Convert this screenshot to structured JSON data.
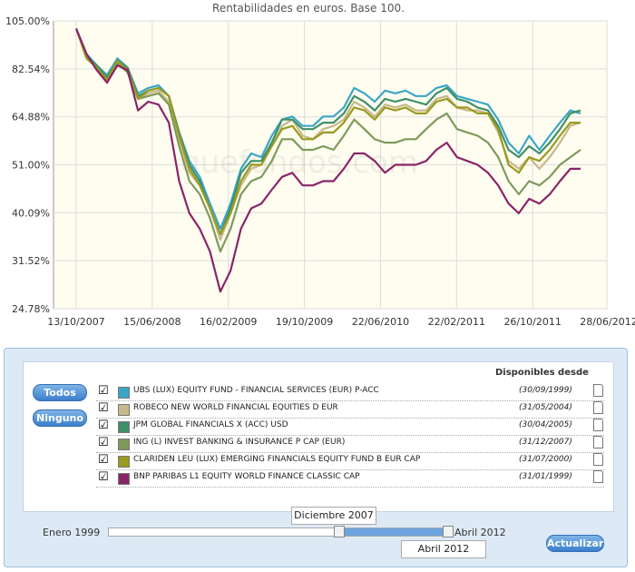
{
  "chart_data": {
    "type": "line",
    "title": "Rentabilidades en euros. Base 100.",
    "x_tick_labels": [
      "13/10/2007",
      "15/06/2008",
      "16/02/2009",
      "19/10/2009",
      "22/06/2010",
      "22/02/2011",
      "26/10/2011",
      "28/06/2012"
    ],
    "y_tick_labels": [
      "105.00%",
      "82.54%",
      "64.88%",
      "51.00%",
      "40.09%",
      "31.52%",
      "24.78%"
    ],
    "y_ticks": [
      105.0,
      82.54,
      64.88,
      51.0,
      40.09,
      31.52,
      24.78
    ],
    "ylim": [
      24.78,
      105.0
    ],
    "y_scale": "log",
    "grid": true,
    "series": [
      {
        "name": "UBS (LUX) EQUITY FUND - FINANCIAL SERVICES (EUR) P-ACC",
        "color": "#3aa6c6",
        "values": [
          101,
          89,
          84,
          80,
          87,
          83,
          73,
          75,
          76,
          72,
          60,
          52,
          48,
          42,
          37,
          42,
          50,
          54,
          53,
          59,
          64,
          65,
          62,
          62,
          65,
          65,
          68,
          75,
          73,
          70,
          74,
          73,
          74,
          72,
          72,
          75,
          76,
          72,
          71,
          70,
          69,
          64,
          57,
          54,
          59,
          55,
          59,
          63,
          67,
          66
        ]
      },
      {
        "name": "ROBECO NEW WORLD FINANCIAL EQUITIES D EUR",
        "color": "#c7b98a",
        "values": [
          101,
          88,
          83,
          78,
          86,
          82,
          71,
          73,
          74,
          70,
          58,
          49,
          46,
          41,
          35,
          40,
          46,
          50,
          51,
          56,
          62,
          64,
          59,
          58,
          61,
          62,
          64,
          70,
          68,
          65,
          69,
          68,
          69,
          67,
          67,
          71,
          72,
          68,
          67,
          67,
          66,
          60,
          52,
          50,
          53,
          50,
          53,
          57,
          62,
          63
        ]
      },
      {
        "name": "JPM GLOBAL FINANCIALS X (ACC) USD",
        "color": "#3f8f6a",
        "values": [
          101,
          88,
          84,
          79,
          86,
          83,
          72,
          74,
          75,
          72,
          60,
          51,
          47,
          41,
          36,
          41,
          49,
          52,
          52,
          57,
          64,
          64,
          61,
          61,
          63,
          63,
          66,
          72,
          70,
          67,
          71,
          70,
          71,
          70,
          69,
          73,
          75,
          71,
          70,
          68,
          67,
          62,
          55,
          53,
          56,
          54,
          57,
          61,
          66,
          67
        ]
      },
      {
        "name": "ING (L) INVEST BANKING & INSURANCE P CAP (EUR)",
        "color": "#7e9a5a",
        "values": [
          101,
          88,
          83,
          78,
          85,
          81,
          71,
          72,
          73,
          69,
          56,
          47,
          44,
          39,
          33,
          37,
          44,
          47,
          48,
          52,
          58,
          58,
          55,
          55,
          56,
          55,
          59,
          64,
          61,
          58,
          57,
          57,
          58,
          58,
          61,
          64,
          66,
          61,
          60,
          59,
          57,
          53,
          47,
          44,
          47,
          46,
          48,
          51,
          53,
          55
        ]
      },
      {
        "name": "CLARIDEN LEU (LUX) EMERGING FINANCIALS EQUITY FUND B EUR CAP",
        "color": "#9a9a20",
        "values": [
          101,
          87,
          83,
          78,
          86,
          82,
          71,
          74,
          75,
          72,
          59,
          50,
          46,
          41,
          36,
          40,
          47,
          51,
          51,
          56,
          61,
          62,
          58,
          58,
          60,
          60,
          63,
          68,
          67,
          64,
          68,
          67,
          68,
          66,
          66,
          70,
          71,
          68,
          68,
          66,
          66,
          61,
          51,
          49,
          53,
          52,
          55,
          59,
          63,
          63
        ]
      },
      {
        "name": "BNP PARIBAS L1 EQUITY WORLD FINANCE CLASSIC CAP",
        "color": "#8a2467",
        "values": [
          101,
          89,
          82,
          77,
          84,
          82,
          67,
          70,
          69,
          63,
          47,
          40,
          37,
          33,
          27,
          30,
          37,
          41,
          42,
          45,
          48,
          49,
          46,
          46,
          47,
          47,
          50,
          54,
          54,
          52,
          49,
          51,
          51,
          51,
          52,
          55,
          57,
          53,
          52,
          51,
          49,
          46,
          42,
          40,
          43,
          42,
          44,
          47,
          50,
          50
        ]
      }
    ]
  },
  "panel": {
    "btn_all": "Todos",
    "btn_none": "Ninguno",
    "avail_header": "Disponibles desde",
    "funds": [
      {
        "name": "UBS (LUX) EQUITY FUND - FINANCIAL SERVICES (EUR) P-ACC",
        "date": "(30/09/1999)",
        "color": "#3aa6c6",
        "checked": "☑"
      },
      {
        "name": "ROBECO NEW WORLD FINANCIAL EQUITIES D EUR",
        "date": "(31/05/2004)",
        "color": "#c7b98a",
        "checked": "☑"
      },
      {
        "name": "JPM GLOBAL FINANCIALS X (ACC) USD",
        "date": "(30/04/2005)",
        "color": "#3f8f6a",
        "checked": "☑"
      },
      {
        "name": "ING (L) INVEST BANKING & INSURANCE P CAP (EUR)",
        "date": "(31/12/2007)",
        "color": "#7e9a5a",
        "checked": "☑"
      },
      {
        "name": "CLARIDEN LEU (LUX) EMERGING FINANCIALS EQUITY FUND B EUR CAP",
        "date": "(31/07/2000)",
        "color": "#9a9a20",
        "checked": "☑"
      },
      {
        "name": "BNP PARIBAS L1 EQUITY WORLD FINANCE CLASSIC CAP",
        "date": "(31/01/1999)",
        "color": "#8a2467",
        "checked": "☑"
      }
    ],
    "slider": {
      "min_label": "Enero 1999",
      "max_label": "Abril 2012",
      "start_tip": "Diciembre 2007",
      "end_tip": "Abril 2012",
      "start_fraction": 0.67,
      "end_fraction": 1.0
    },
    "btn_update": "Actualizar"
  }
}
